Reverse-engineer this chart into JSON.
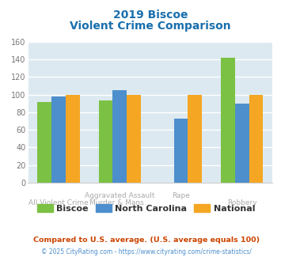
{
  "title_line1": "2019 Biscoe",
  "title_line2": "Violent Crime Comparison",
  "biscoe": [
    92,
    93,
    0,
    142
  ],
  "north_carolina": [
    98,
    105,
    73,
    90
  ],
  "national": [
    100,
    100,
    100,
    100
  ],
  "biscoe_color": "#7bc143",
  "nc_color": "#4d8fcc",
  "national_color": "#f5a623",
  "ylim": [
    0,
    160
  ],
  "yticks": [
    0,
    20,
    40,
    60,
    80,
    100,
    120,
    140,
    160
  ],
  "bg_color": "#dce9f0",
  "grid_color": "#ffffff",
  "title_color": "#1a6fad",
  "legend_labels": [
    "Biscoe",
    "North Carolina",
    "National"
  ],
  "footnote1": "Compared to U.S. average. (U.S. average equals 100)",
  "footnote2": "© 2025 CityRating.com - https://www.cityrating.com/crime-statistics/",
  "footnote1_color": "#cc4400",
  "footnote2_color": "#4d8fcc",
  "xticklabels_row1": [
    "",
    "Aggravated Assault",
    "",
    ""
  ],
  "xticklabels_row2": [
    "All Violent Crime",
    "Murder & Mans...",
    "Rape",
    "Robbery"
  ],
  "xlabel_color": "#aaaaaa"
}
